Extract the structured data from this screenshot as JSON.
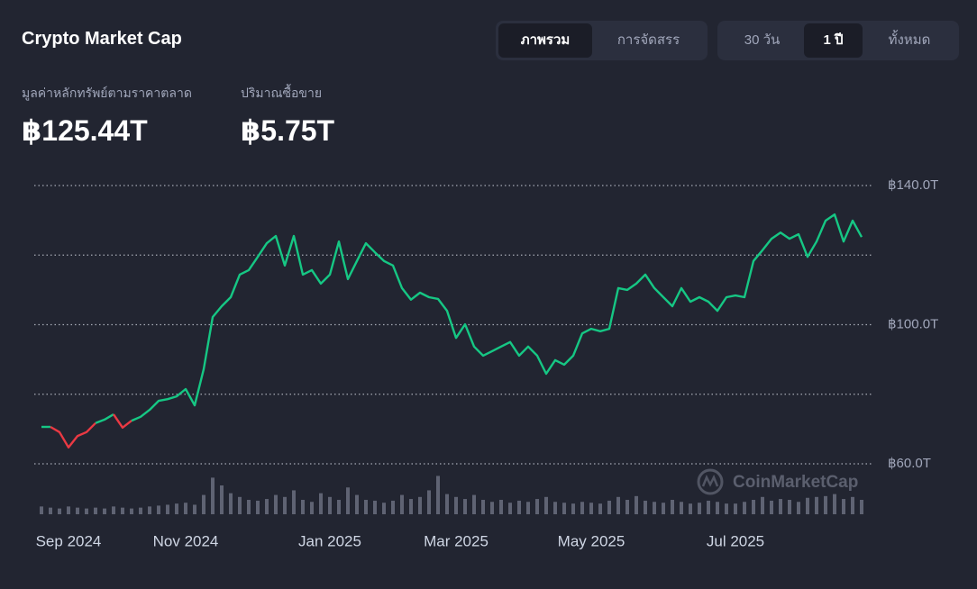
{
  "header": {
    "title": "Crypto Market Cap",
    "view_tabs": [
      {
        "label": "ภาพรวม",
        "active": true
      },
      {
        "label": "การจัดสรร",
        "active": false
      }
    ],
    "range_tabs": [
      {
        "label": "30 วัน",
        "active": false
      },
      {
        "label": "1 ปี",
        "active": true
      },
      {
        "label": "ทั้งหมด",
        "active": false
      }
    ]
  },
  "stats": [
    {
      "label": "มูลค่าหลักทรัพย์ตามราคาตลาด",
      "value": "฿125.44T"
    },
    {
      "label": "ปริมาณซื้อขาย",
      "value": "฿5.75T"
    }
  ],
  "watermark": "CoinMarketCap",
  "chart_data": {
    "type": "line",
    "categories": [
      null,
      null,
      null,
      "Sep 2024",
      null,
      null,
      null,
      null,
      null,
      null,
      null,
      null,
      null,
      null,
      null,
      null,
      "Nov 2024",
      null,
      null,
      null,
      null,
      null,
      null,
      null,
      null,
      null,
      null,
      null,
      null,
      null,
      null,
      null,
      "Jan 2025",
      null,
      null,
      null,
      null,
      null,
      null,
      null,
      null,
      null,
      null,
      null,
      null,
      null,
      "Mar 2025",
      null,
      null,
      null,
      null,
      null,
      null,
      null,
      null,
      null,
      null,
      null,
      null,
      null,
      null,
      "May 2025",
      null,
      null,
      null,
      null,
      null,
      null,
      null,
      null,
      null,
      null,
      null,
      null,
      null,
      null,
      null,
      "Jul 2025",
      null,
      null,
      null,
      null,
      null,
      null,
      null,
      null,
      null,
      null,
      null,
      null,
      null,
      null
    ],
    "values": [
      70.6,
      70.6,
      69.1,
      64.7,
      68.0,
      69.1,
      71.7,
      72.7,
      74.2,
      70.4,
      72.4,
      73.5,
      75.5,
      78.1,
      78.6,
      79.4,
      81.5,
      76.8,
      87.2,
      102.2,
      105.3,
      107.9,
      114.4,
      115.7,
      119.5,
      123.4,
      125.5,
      117.0,
      125.5,
      114.4,
      115.7,
      111.8,
      114.4,
      123.9,
      113.1,
      118.3,
      123.4,
      120.8,
      118.3,
      117.0,
      110.5,
      107.2,
      109.2,
      107.9,
      107.4,
      104.0,
      96.2,
      100.1,
      93.7,
      91.1,
      92.4,
      93.7,
      95.0,
      91.1,
      93.7,
      91.1,
      85.9,
      89.8,
      88.5,
      91.1,
      97.5,
      98.8,
      98.1,
      98.8,
      110.5,
      110.0,
      111.8,
      114.4,
      110.5,
      107.9,
      105.3,
      110.5,
      106.6,
      107.9,
      106.6,
      104.0,
      107.9,
      108.4,
      107.9,
      118.3,
      121.4,
      124.7,
      126.5,
      124.7,
      126.0,
      119.5,
      123.9,
      129.9,
      131.7,
      123.9,
      129.9,
      125.2
    ],
    "color": "#16c784",
    "down_color": "#ea3943",
    "ylim": [
      55,
      145
    ],
    "yticks": [
      {
        "value": 60,
        "label": "฿60.0T"
      },
      {
        "value": 100,
        "label": "฿100.0T"
      },
      {
        "value": 140,
        "label": "฿140.0T"
      }
    ],
    "ygrid": [
      60,
      80,
      100,
      120,
      140
    ],
    "grid": true,
    "volume": {
      "color": "#5f6373",
      "ylim": [
        0,
        15
      ],
      "values": [
        2.7,
        2.3,
        2.0,
        2.7,
        2.3,
        2.0,
        2.3,
        2.0,
        2.7,
        2.3,
        2.0,
        2.3,
        2.7,
        3.0,
        3.3,
        3.7,
        4.0,
        3.3,
        6.7,
        12.7,
        10.0,
        7.3,
        6.0,
        5.0,
        4.7,
        5.3,
        6.7,
        6.0,
        8.3,
        5.0,
        4.3,
        7.3,
        6.0,
        5.0,
        9.3,
        6.7,
        5.0,
        4.7,
        4.0,
        4.7,
        6.7,
        5.3,
        6.0,
        8.3,
        13.3,
        7.0,
        6.0,
        5.3,
        6.7,
        5.0,
        4.3,
        5.0,
        4.0,
        4.7,
        4.3,
        5.3,
        6.0,
        4.3,
        4.0,
        3.7,
        4.3,
        4.0,
        3.7,
        4.7,
        6.0,
        5.0,
        6.3,
        4.7,
        4.3,
        4.0,
        5.0,
        4.3,
        3.7,
        4.0,
        4.7,
        4.3,
        3.7,
        3.7,
        4.3,
        5.0,
        6.0,
        4.7,
        5.3,
        5.0,
        4.3,
        5.7,
        6.0,
        6.3,
        7.0,
        5.3,
        6.0,
        5.0
      ]
    }
  }
}
